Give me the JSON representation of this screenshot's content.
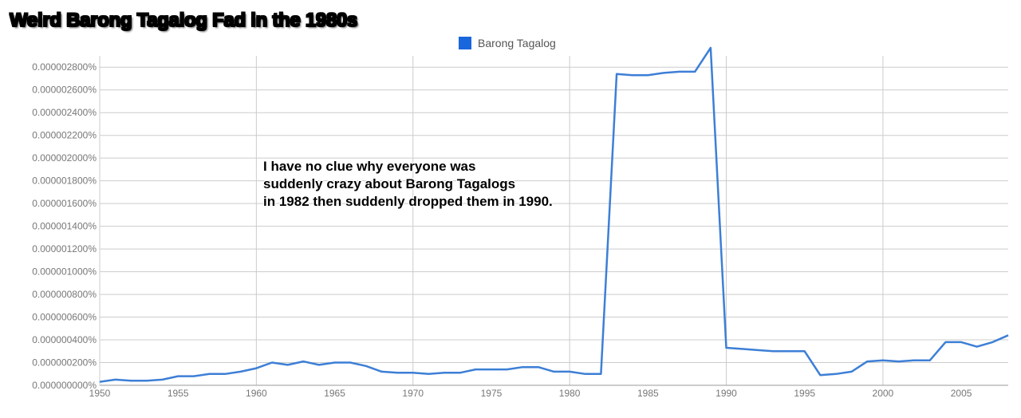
{
  "title": "Weird Barong Tagalog Fad in the 1980s",
  "annotation": {
    "lines": [
      "I have no clue why everyone was",
      "suddenly crazy about Barong Tagalogs",
      "in 1982 then suddenly dropped them in 1990."
    ]
  },
  "colors": {
    "series": "#3d7fd6",
    "legend_swatch": "#1a66dd",
    "grid": "#cccccc",
    "axis_text": "#777777"
  },
  "chart_data": {
    "type": "line",
    "title": "Weird Barong Tagalog Fad in the 1980s",
    "xlabel": "",
    "ylabel": "",
    "xlim": [
      1950,
      2008
    ],
    "ylim": [
      0,
      2.9e-06
    ],
    "grid": true,
    "legend_placement": "top-center",
    "x_ticks": [
      "1950",
      "1955",
      "1960",
      "1965",
      "1970",
      "1975",
      "1980",
      "1985",
      "1990",
      "1995",
      "2000",
      "2005"
    ],
    "y_ticks": [
      {
        "value": 0,
        "label": "0.000000000%"
      },
      {
        "value": 2e-07,
        "label": "0.000000200%"
      },
      {
        "value": 4e-07,
        "label": "0.000000400%"
      },
      {
        "value": 6e-07,
        "label": "0.000000600%"
      },
      {
        "value": 8e-07,
        "label": "0.000000800%"
      },
      {
        "value": 1e-06,
        "label": "0.000001000%"
      },
      {
        "value": 1.2e-06,
        "label": "0.000001200%"
      },
      {
        "value": 1.4e-06,
        "label": "0.000001400%"
      },
      {
        "value": 1.6e-06,
        "label": "0.000001600%"
      },
      {
        "value": 1.8e-06,
        "label": "0.000001800%"
      },
      {
        "value": 2e-06,
        "label": "0.000002000%"
      },
      {
        "value": 2.2e-06,
        "label": "0.000002200%"
      },
      {
        "value": 2.4e-06,
        "label": "0.000002400%"
      },
      {
        "value": 2.6e-06,
        "label": "0.000002600%"
      },
      {
        "value": 2.8e-06,
        "label": "0.000002800%"
      }
    ],
    "series": [
      {
        "name": "Barong Tagalog",
        "x": [
          1950,
          1951,
          1952,
          1953,
          1954,
          1955,
          1956,
          1957,
          1958,
          1959,
          1960,
          1961,
          1962,
          1963,
          1964,
          1965,
          1966,
          1967,
          1968,
          1969,
          1970,
          1971,
          1972,
          1973,
          1974,
          1975,
          1976,
          1977,
          1978,
          1979,
          1980,
          1981,
          1982,
          1983,
          1984,
          1985,
          1986,
          1987,
          1988,
          1989,
          1990,
          1991,
          1992,
          1993,
          1994,
          1995,
          1996,
          1997,
          1998,
          1999,
          2000,
          2001,
          2002,
          2003,
          2004,
          2005,
          2006,
          2007,
          2008
        ],
        "values": [
          3e-08,
          5e-08,
          4e-08,
          4e-08,
          5e-08,
          8e-08,
          8e-08,
          1e-07,
          1e-07,
          1.2e-07,
          1.5e-07,
          2e-07,
          1.8e-07,
          2.1e-07,
          1.8e-07,
          2e-07,
          2e-07,
          1.7e-07,
          1.2e-07,
          1.1e-07,
          1.1e-07,
          1e-07,
          1.1e-07,
          1.1e-07,
          1.4e-07,
          1.4e-07,
          1.4e-07,
          1.6e-07,
          1.6e-07,
          1.2e-07,
          1.2e-07,
          1e-07,
          1e-07,
          2.74e-06,
          2.73e-06,
          2.73e-06,
          2.75e-06,
          2.76e-06,
          2.76e-06,
          2.97e-06,
          3.3e-07,
          3.2e-07,
          3.1e-07,
          3e-07,
          3e-07,
          3e-07,
          9e-08,
          1e-07,
          1.2e-07,
          2.1e-07,
          2.2e-07,
          2.1e-07,
          2.2e-07,
          2.2e-07,
          3.8e-07,
          3.8e-07,
          3.4e-07,
          3.8e-07,
          4.4e-07
        ]
      }
    ]
  }
}
